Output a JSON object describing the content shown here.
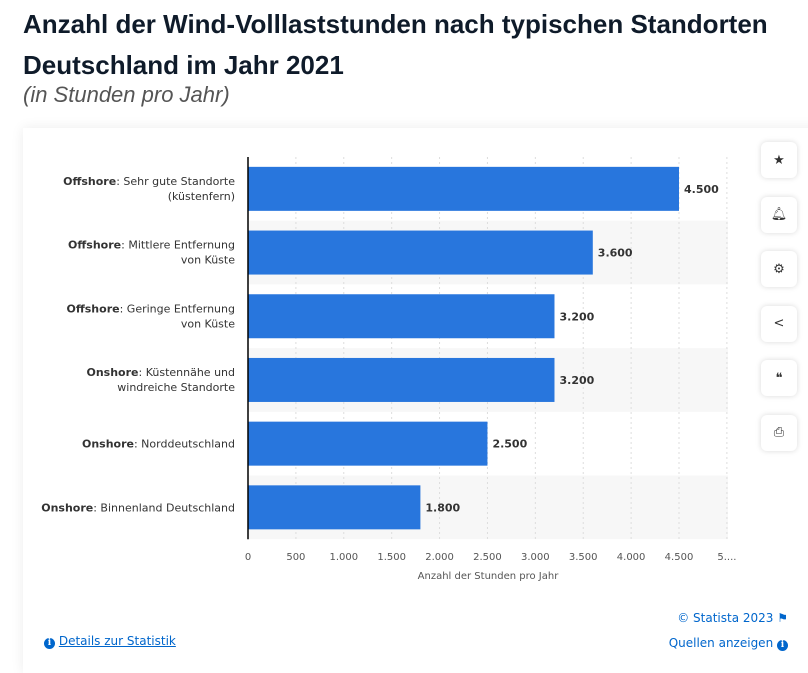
{
  "header": {
    "title_line1": "Anzahl der Wind-Volllaststunden nach typischen Standorten",
    "title_line2": "Deutschland im Jahr 2021",
    "subtitle": "(in Stunden pro Jahr)"
  },
  "sidebar": {
    "icons": [
      "star-icon",
      "bell-icon",
      "gear-icon",
      "share-icon",
      "quote-icon",
      "print-icon"
    ]
  },
  "footer": {
    "copyright": "© Statista 2023",
    "details": "Details zur Statistik",
    "sources": "Quellen anzeigen"
  },
  "colors": {
    "bar": "#2876dd",
    "link": "#0066cc"
  },
  "chart_data": {
    "type": "bar",
    "orientation": "horizontal",
    "categories": [
      {
        "bold": "Offshore",
        "rest": ": Sehr gute Standorte",
        "line2": "(küstenfern)"
      },
      {
        "bold": "Offshore",
        "rest": ": Mittlere Entfernung",
        "line2": "von Küste"
      },
      {
        "bold": "Offshore",
        "rest": ": Geringe Entfernung",
        "line2": "von Küste"
      },
      {
        "bold": "Onshore",
        "rest": ": Küstennähe und",
        "line2": "windreiche Standorte"
      },
      {
        "bold": "Onshore",
        "rest": ": Norddeutschland",
        "line2": ""
      },
      {
        "bold": "Onshore",
        "rest": ": Binnenland Deutschland",
        "line2": ""
      }
    ],
    "values": [
      4500,
      3600,
      3200,
      3200,
      2500,
      1800
    ],
    "value_labels": [
      "4.500",
      "3.600",
      "3.200",
      "3.200",
      "2.500",
      "1.800"
    ],
    "xlabel": "Anzahl der Stunden pro Jahr",
    "xlim": [
      0,
      5000
    ],
    "xticks": [
      "0",
      "500",
      "1.000",
      "1.500",
      "2.000",
      "2.500",
      "3.000",
      "3.500",
      "4.000",
      "4.500",
      "5...."
    ],
    "grid": true
  }
}
